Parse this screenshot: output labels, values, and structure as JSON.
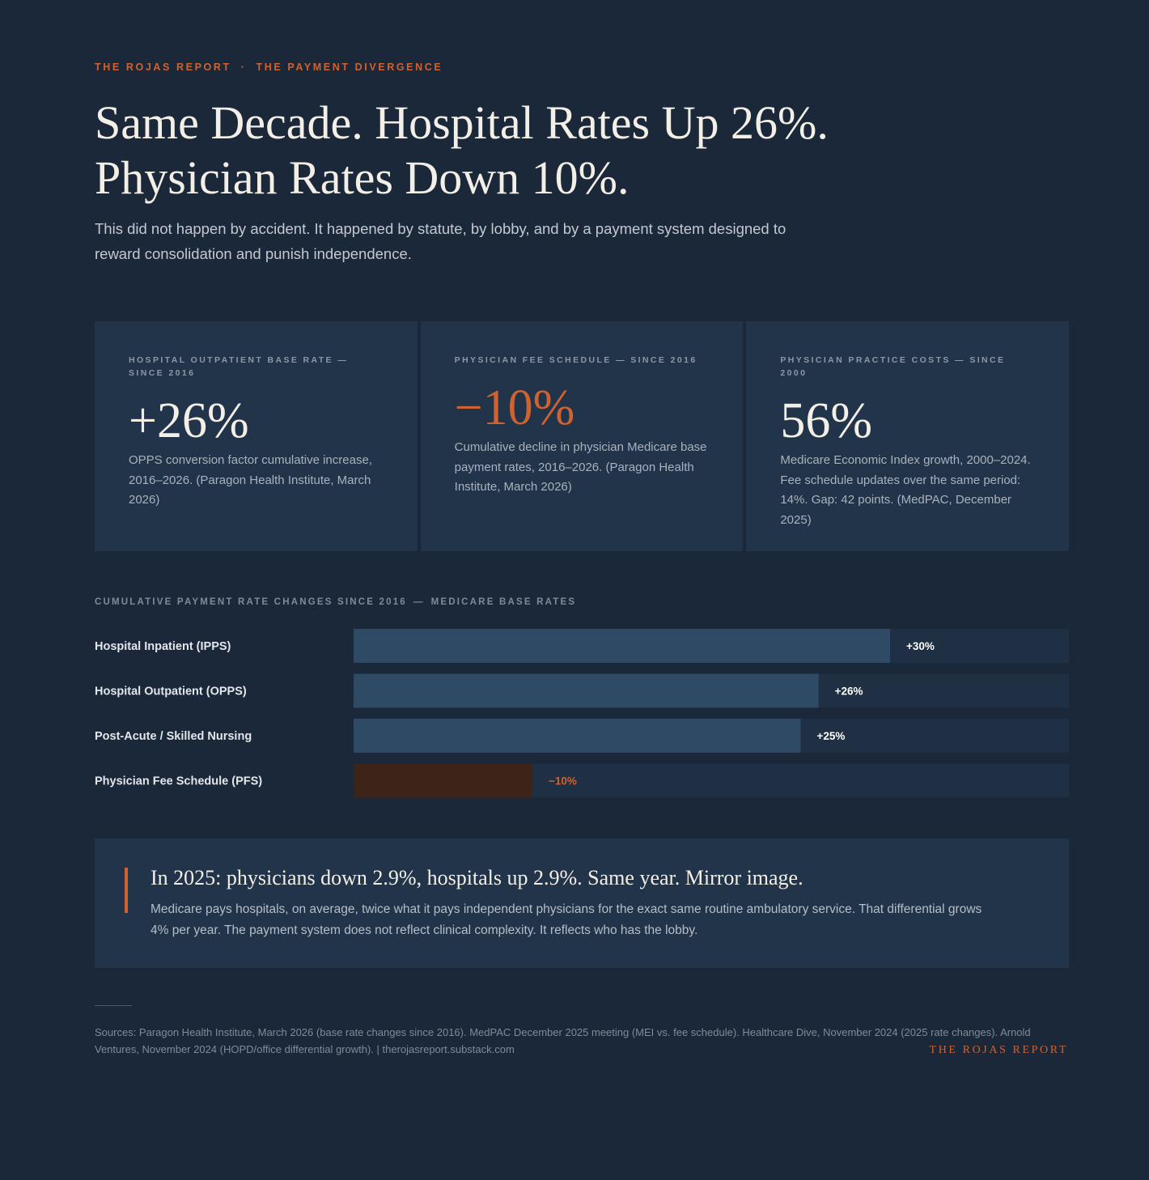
{
  "kicker": {
    "publication": "THE ROJAS REPORT",
    "separator": "·",
    "section": "THE PAYMENT DIVERGENCE"
  },
  "headline": {
    "line1": "Same Decade. Hospital Rates Up 26%.",
    "line2": "Physician Rates Down 10%."
  },
  "dek": "This did not happen by accident. It happened by statute, by lobby, and by a payment system designed to reward consolidation and punish independence.",
  "stats": [
    {
      "label": "HOSPITAL OUTPATIENT BASE RATE — SINCE 2016",
      "value": "+26%",
      "desc": "OPPS conversion factor cumulative increase, 2016–2026. (Paragon Health Institute, March 2026)"
    },
    {
      "label": "PHYSICIAN FEE SCHEDULE — SINCE 2016",
      "value": "−10%",
      "desc": "Cumulative decline in physician Medicare base payment rates, 2016–2026. (Paragon Health Institute, March 2026)"
    },
    {
      "label": "PHYSICIAN PRACTICE COSTS — SINCE 2000",
      "value": "56%",
      "desc": "Medicare Economic Index growth, 2000–2024. Fee schedule updates over the same period: 14%. Gap: 42 points. (MedPAC, December 2025)"
    }
  ],
  "chart_title": {
    "part1": "CUMULATIVE PAYMENT RATE CHANGES SINCE 2016",
    "dash": "—",
    "part2": "MEDICARE BASE RATES"
  },
  "chart_data": {
    "type": "bar",
    "orientation": "horizontal",
    "title": "Cumulative Payment Rate Changes Since 2016 — Medicare Base Rates",
    "xlabel": "",
    "ylabel": "",
    "xlim": [
      0,
      40
    ],
    "categories": [
      "Hospital Inpatient (IPPS)",
      "Hospital Outpatient (OPPS)",
      "Post-Acute / Skilled Nursing",
      "Physician Fee Schedule (PFS)"
    ],
    "values": [
      30,
      26,
      25,
      -10
    ],
    "value_labels": [
      "+30%",
      "+26%",
      "+25%",
      "−10%"
    ],
    "colors": {
      "positive": "#2e4a64",
      "negative": "#3d2419",
      "track": "#1f3044",
      "positive_label": "#ffffff",
      "negative_label": "#d0622f"
    }
  },
  "callout": {
    "heading": "In 2025: physicians down 2.9%, hospitals up 2.9%. Same year. Mirror image.",
    "body": "Medicare pays hospitals, on average, twice what it pays independent physicians for the exact same routine ambulatory service. That differential grows 4% per year. The payment system does not reflect clinical complexity. It reflects who has the lobby."
  },
  "footer": {
    "sources": "Sources: Paragon Health Institute, March 2026 (base rate changes since 2016). MedPAC December 2025 meeting (MEI vs. fee schedule). Healthcare Dive, November 2024 (2025 rate changes). Arnold Ventures, November 2024 (HOPD/office differential growth). | therojasreport.substack.com",
    "brand": "THE ROJAS REPORT"
  }
}
